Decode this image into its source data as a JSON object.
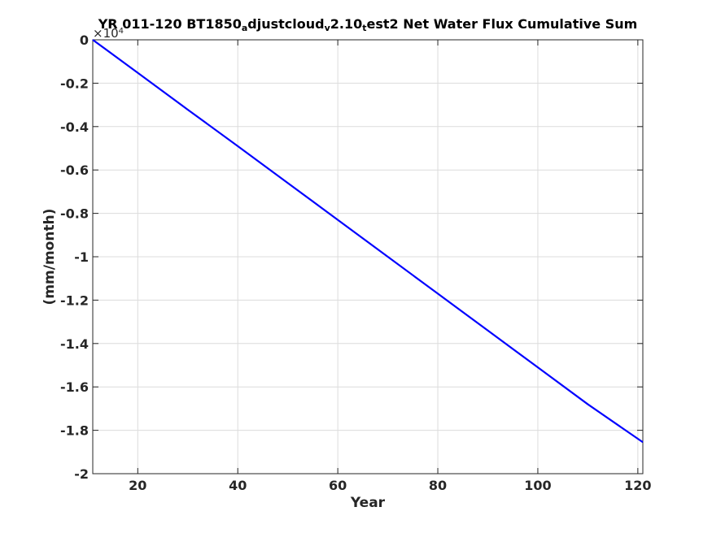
{
  "chart_data": {
    "type": "line",
    "title_parts": {
      "a": "YR 011-120 BT1850",
      "b": "a",
      "c": "djustcloud",
      "d": "v",
      "e": "2.10",
      "f": "t",
      "g": "est2 Net Water Flux Cumulative Sum"
    },
    "xlabel": "Year",
    "ylabel": "(mm/month)",
    "y_multiplier": {
      "base": "×10",
      "exponent": "4"
    },
    "xlim": [
      11,
      121
    ],
    "ylim": [
      -2,
      0
    ],
    "xticks": [
      20,
      40,
      60,
      80,
      100,
      120
    ],
    "yticks": [
      0,
      -0.2,
      -0.4,
      -0.6,
      -0.8,
      -1,
      -1.2,
      -1.4,
      -1.6,
      -1.8,
      -2
    ],
    "ytick_labels": [
      "0",
      "-0.2",
      "-0.4",
      "-0.6",
      "-0.8",
      "-1",
      "-1.2",
      "-1.4",
      "-1.6",
      "-1.8",
      "-2"
    ],
    "grid": true,
    "series": [
      {
        "color": "#0000ff",
        "x": [
          11,
          20,
          30,
          40,
          50,
          60,
          70,
          80,
          90,
          100,
          110,
          121
        ],
        "y": [
          0,
          -0.152,
          -0.322,
          -0.49,
          -0.66,
          -0.83,
          -1.0,
          -1.17,
          -1.34,
          -1.51,
          -1.68,
          -1.855
        ]
      }
    ]
  }
}
